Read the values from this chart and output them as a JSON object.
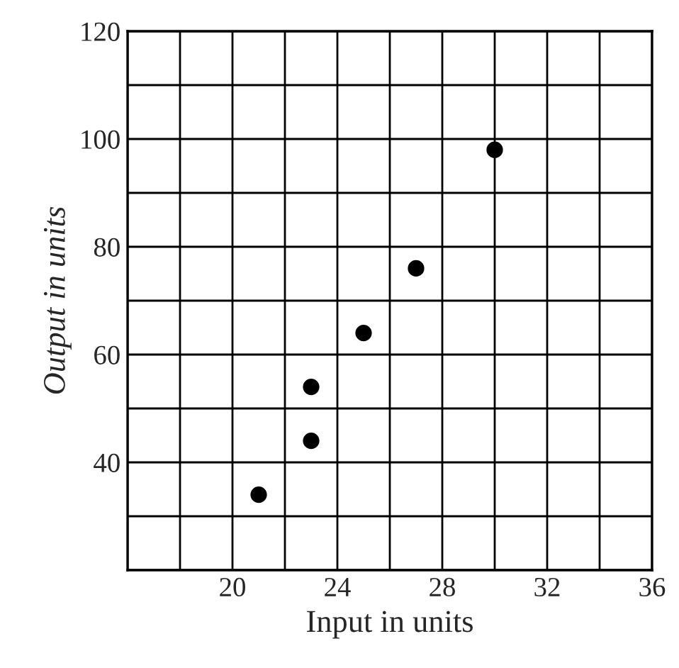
{
  "chart_data": {
    "type": "scatter",
    "xlabel": "Input in units",
    "ylabel": "Output in units",
    "x": [
      21,
      23,
      23,
      25,
      27,
      30
    ],
    "values": [
      34,
      44,
      54,
      64,
      76,
      98
    ],
    "color": "#000000",
    "marker": "circle",
    "xlim": [
      16,
      36
    ],
    "ylim": [
      20,
      120
    ],
    "xticks": [
      {
        "value": 16,
        "label": null
      },
      {
        "value": 18,
        "label": null
      },
      20,
      {
        "value": 22,
        "label": null
      },
      24,
      {
        "value": 26,
        "label": null
      },
      28,
      {
        "value": 30,
        "label": null
      },
      32,
      {
        "value": 34,
        "label": null
      },
      36
    ],
    "yticks": [
      {
        "value": 20,
        "label": null
      },
      {
        "value": 30,
        "label": null
      },
      40,
      {
        "value": 50,
        "label": null
      },
      60,
      {
        "value": 70,
        "label": null
      },
      80,
      {
        "value": 90,
        "label": null
      },
      100,
      {
        "value": 110,
        "label": null
      },
      120
    ],
    "grid": true
  }
}
